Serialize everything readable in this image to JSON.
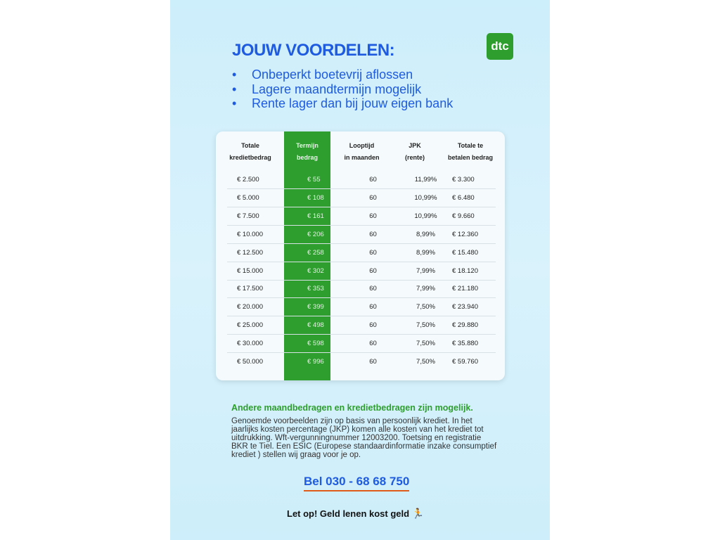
{
  "title": "JOUW VOORDELEN:",
  "logo": "dtc",
  "bullets": [
    "Onbeperkt boetevrij aflossen",
    "Lagere maandtermijn mogelijk",
    "Rente lager dan bij jouw eigen bank"
  ],
  "table": {
    "headers": [
      [
        "Totale",
        "kredietbedrag"
      ],
      [
        "Termijn",
        "bedrag"
      ],
      [
        "Looptijd",
        "in maanden"
      ],
      [
        "JPK",
        "(rente)"
      ],
      [
        "Totale te",
        "betalen bedrag"
      ]
    ],
    "rows": [
      [
        "€ 2.500",
        "€ 55",
        "60",
        "11,99%",
        "€ 3.300"
      ],
      [
        "€ 5.000",
        "€ 108",
        "60",
        "10,99%",
        "€ 6.480"
      ],
      [
        "€ 7.500",
        "€ 161",
        "60",
        "10,99%",
        "€ 9.660"
      ],
      [
        "€ 10.000",
        "€ 206",
        "60",
        "8,99%",
        "€ 12.360"
      ],
      [
        "€ 12.500",
        "€ 258",
        "60",
        "8,99%",
        "€ 15.480"
      ],
      [
        "€ 15.000",
        "€ 302",
        "60",
        "7,99%",
        "€ 18.120"
      ],
      [
        "€ 17.500",
        "€ 353",
        "60",
        "7,99%",
        "€ 21.180"
      ],
      [
        "€ 20.000",
        "€ 399",
        "60",
        "7,50%",
        "€ 23.940"
      ],
      [
        "€ 25.000",
        "€ 498",
        "60",
        "7,50%",
        "€ 29.880"
      ],
      [
        "€ 30.000",
        "€ 598",
        "60",
        "7,50%",
        "€ 35.880"
      ],
      [
        "€ 50.000",
        "€ 996",
        "60",
        "7,50%",
        "€ 59.760"
      ]
    ]
  },
  "note": "Andere maandbedragen en kredietbedragen zijn mogelijk.",
  "fine_print": "Genoemde voorbeelden zijn op basis van persoonlijk krediet. In het jaarlijks kosten percentage (JKP) komen alle kosten van het krediet tot uitdrukking. Wft-vergunningnummer 12003200. Toetsing en registratie BKR te Tiel. Een ESIC (Europese standaardinformatie inzake consumptief krediet ) stellen wij graag voor je op.",
  "phone": "Bel 030 - 68 68 750",
  "warning": "Let op! Geld lenen kost geld",
  "colors": {
    "blue": "#1e5be0",
    "green": "#2e9e2e",
    "underline": "#e05a1a"
  }
}
